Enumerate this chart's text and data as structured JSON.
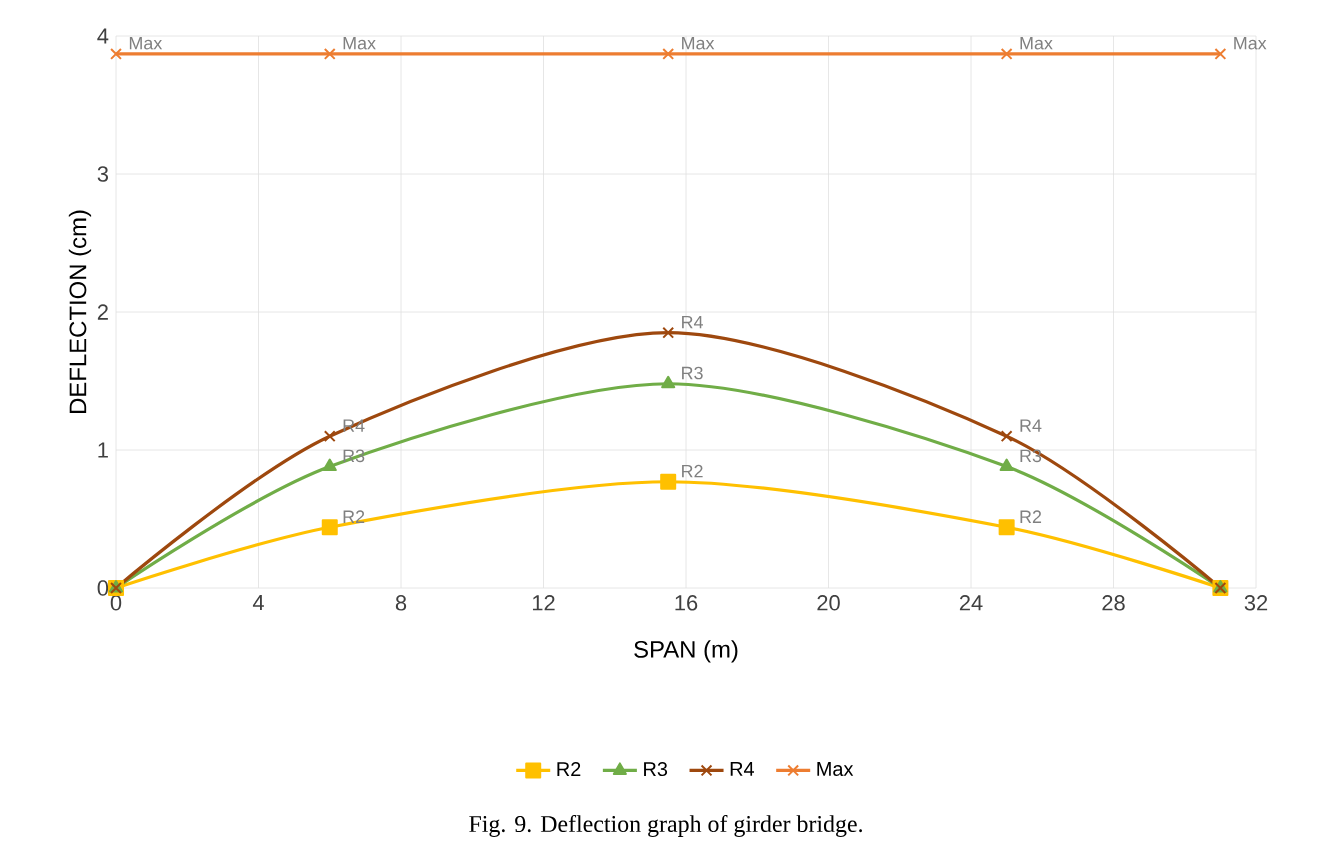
{
  "chart_data": {
    "type": "line",
    "xlabel": "SPAN (m)",
    "ylabel": "DEFLECTION (cm)",
    "x": [
      0,
      6,
      15.5,
      25,
      31
    ],
    "series": [
      {
        "name": "R2",
        "color": "#ffc000",
        "marker": "square",
        "values": [
          0,
          0.44,
          0.77,
          0.44,
          0
        ]
      },
      {
        "name": "R3",
        "color": "#70ad47",
        "marker": "triangle",
        "values": [
          0,
          0.88,
          1.48,
          0.88,
          0
        ]
      },
      {
        "name": "R4",
        "color": "#9e480e",
        "marker": "cross",
        "values": [
          0,
          1.1,
          1.85,
          1.1,
          0
        ]
      },
      {
        "name": "Max",
        "color": "#ed7d31",
        "marker": "cross",
        "values": [
          3.87,
          3.87,
          3.87,
          3.87,
          3.87
        ]
      }
    ],
    "xlim": [
      0,
      32
    ],
    "xticks": [
      0,
      4,
      8,
      12,
      16,
      20,
      24,
      28,
      32
    ],
    "ylim": [
      0,
      4
    ],
    "yticks": [
      0,
      1,
      2,
      3,
      4
    ],
    "grid": true,
    "legend": "bottom",
    "line_style": "solid",
    "annotations": [
      {
        "text": "R2",
        "x": 6,
        "y": 0.44
      },
      {
        "text": "R2",
        "x": 15.5,
        "y": 0.77
      },
      {
        "text": "R2",
        "x": 25,
        "y": 0.44
      },
      {
        "text": "R3",
        "x": 6,
        "y": 0.88
      },
      {
        "text": "R3",
        "x": 15.5,
        "y": 1.48
      },
      {
        "text": "R3",
        "x": 25,
        "y": 0.88
      },
      {
        "text": "R4",
        "x": 6,
        "y": 1.1
      },
      {
        "text": "R4",
        "x": 15.5,
        "y": 1.85
      },
      {
        "text": "R4",
        "x": 25,
        "y": 1.1
      },
      {
        "text": "Max",
        "x": 0,
        "y": 3.87
      },
      {
        "text": "Max",
        "x": 6,
        "y": 3.87
      },
      {
        "text": "Max",
        "x": 15.5,
        "y": 3.87
      },
      {
        "text": "Max",
        "x": 25,
        "y": 3.87
      },
      {
        "text": "Max",
        "x": 31,
        "y": 3.87
      },
      "Fig. 9. Deflection graph of girder bridge."
    ]
  }
}
